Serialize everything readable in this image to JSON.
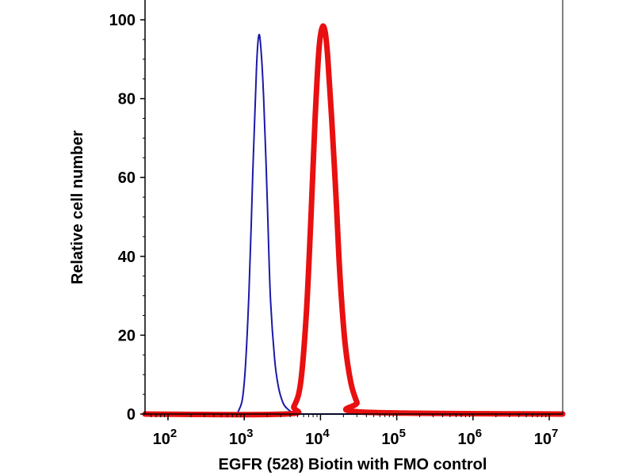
{
  "chart_data": {
    "type": "line",
    "title": "",
    "xlabel": "EGFR (528) Biotin with FMO control",
    "ylabel": "Relative cell number",
    "xscale": "log",
    "xlim": [
      50,
      15000000
    ],
    "ylim": [
      0,
      100
    ],
    "grid": false,
    "yticks": [
      0,
      20,
      40,
      60,
      80,
      100
    ],
    "ytick_labels": [
      "0",
      "20",
      "40",
      "60",
      "80",
      "100"
    ],
    "xticks": [
      {
        "value": 100,
        "base": "10",
        "exp": "2"
      },
      {
        "value": 1000,
        "base": "10",
        "exp": "3"
      },
      {
        "value": 10000,
        "base": "10",
        "exp": "4"
      },
      {
        "value": 100000,
        "base": "10",
        "exp": "5"
      },
      {
        "value": 1000000,
        "base": "10",
        "exp": "6"
      },
      {
        "value": 10000000,
        "base": "10",
        "exp": "7"
      }
    ],
    "series": [
      {
        "color": "#1a1aa8",
        "line_style": "thin",
        "x": [
          50,
          600,
          850,
          1000,
          1150,
          1300,
          1450,
          1550,
          1650,
          1800,
          2000,
          2200,
          2500,
          2800,
          3200,
          3600,
          4200,
          5000,
          15000000
        ],
        "y": [
          0,
          0,
          1,
          8,
          30,
          62,
          88,
          96,
          93,
          80,
          55,
          30,
          14,
          7,
          3,
          1.5,
          0.5,
          0,
          0
        ]
      },
      {
        "color": "#e81010",
        "line_style": "thick",
        "x": [
          50,
          3500,
          4500,
          5500,
          6500,
          7500,
          8500,
          9500,
          10500,
          11500,
          12500,
          14000,
          16000,
          18000,
          21000,
          25000,
          30000,
          35000,
          15000000
        ],
        "y": [
          0,
          0,
          2,
          8,
          25,
          50,
          75,
          92,
          98,
          97,
          90,
          75,
          55,
          35,
          18,
          8,
          3,
          0.5,
          0
        ]
      }
    ]
  }
}
